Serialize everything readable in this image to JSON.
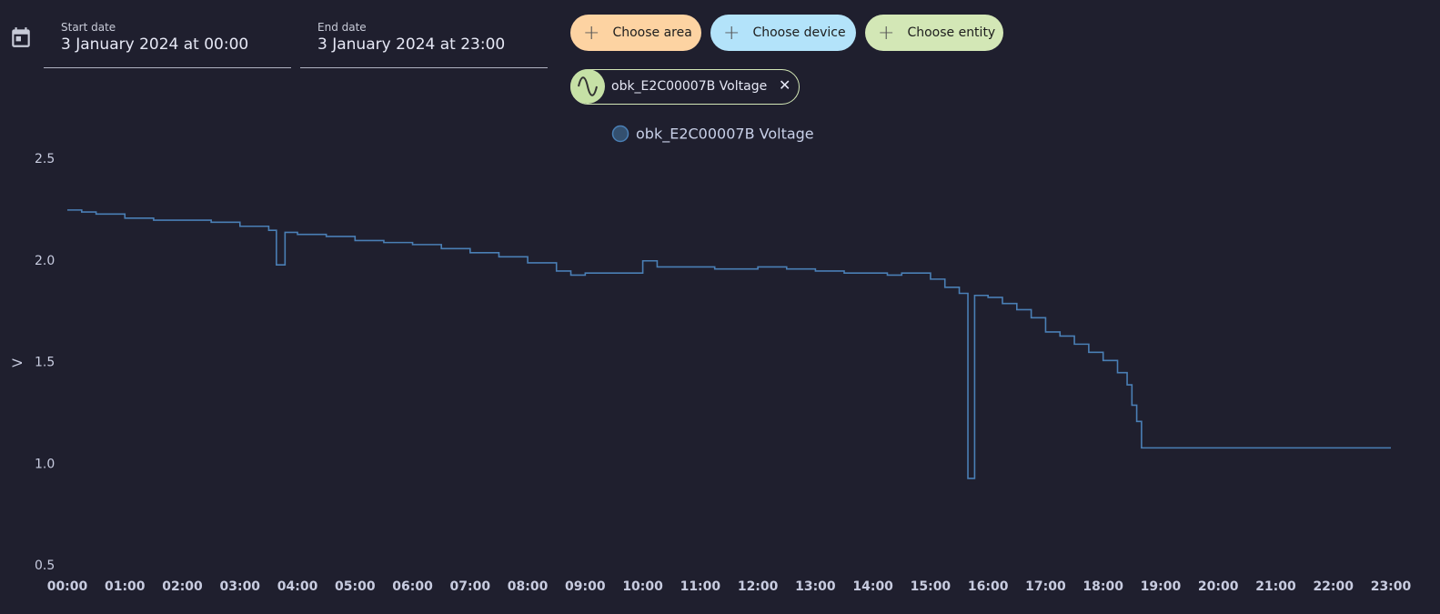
{
  "date_picker": {
    "start_label": "Start date",
    "start_value": "3 January 2024 at 00:00",
    "end_label": "End date",
    "end_value": "3 January 2024 at 23:00"
  },
  "target_buttons": [
    "Choose area",
    "Choose device",
    "Choose entity"
  ],
  "selected_entity": "obk_E2C00007B Voltage",
  "chart_data": {
    "type": "line",
    "step": "after",
    "y_label": "V",
    "xlim": [
      "00:00",
      "23:00"
    ],
    "xticks": [
      "00:00",
      "01:00",
      "02:00",
      "03:00",
      "04:00",
      "05:00",
      "06:00",
      "07:00",
      "08:00",
      "09:00",
      "10:00",
      "11:00",
      "12:00",
      "13:00",
      "14:00",
      "15:00",
      "16:00",
      "17:00",
      "18:00",
      "19:00",
      "20:00",
      "21:00",
      "22:00",
      "23:00"
    ],
    "ylim": [
      0.5,
      2.5
    ],
    "yticks": [
      0.5,
      {
        "value": 1,
        "label": "1.0"
      },
      1.5,
      {
        "value": 2,
        "label": "2.0"
      },
      2.5
    ],
    "series": [
      {
        "name": "obk_E2C00007B Voltage",
        "color": "#4a7fb5",
        "x": [
          "00:00",
          "00:15",
          "00:30",
          "01:00",
          "01:30",
          "02:00",
          "02:30",
          "03:00",
          "03:30",
          "03:38",
          "03:47",
          "04:00",
          "04:30",
          "05:00",
          "05:30",
          "06:00",
          "06:30",
          "07:00",
          "07:30",
          "08:00",
          "08:30",
          "08:45",
          "09:00",
          "10:00",
          "10:15",
          "11:00",
          "11:15",
          "12:00",
          "12:30",
          "13:00",
          "13:30",
          "14:00",
          "14:15",
          "14:30",
          "15:00",
          "15:15",
          "15:30",
          "15:39",
          "15:46",
          "16:00",
          "16:15",
          "16:30",
          "16:45",
          "17:00",
          "17:15",
          "17:30",
          "17:45",
          "18:00",
          "18:15",
          "18:25",
          "18:30",
          "18:35",
          "18:40",
          "23:00"
        ],
        "values": [
          2.25,
          2.24,
          2.23,
          2.21,
          2.2,
          2.2,
          2.19,
          2.17,
          2.15,
          1.98,
          2.14,
          2.13,
          2.12,
          2.1,
          2.09,
          2.08,
          2.06,
          2.04,
          2.02,
          1.99,
          1.95,
          1.93,
          1.94,
          2.0,
          1.97,
          1.97,
          1.96,
          1.97,
          1.96,
          1.95,
          1.94,
          1.94,
          1.93,
          1.94,
          1.91,
          1.87,
          1.84,
          0.93,
          1.83,
          1.82,
          1.79,
          1.76,
          1.72,
          1.65,
          1.63,
          1.59,
          1.55,
          1.51,
          1.45,
          1.39,
          1.29,
          1.21,
          1.08,
          1.08
        ]
      }
    ]
  }
}
